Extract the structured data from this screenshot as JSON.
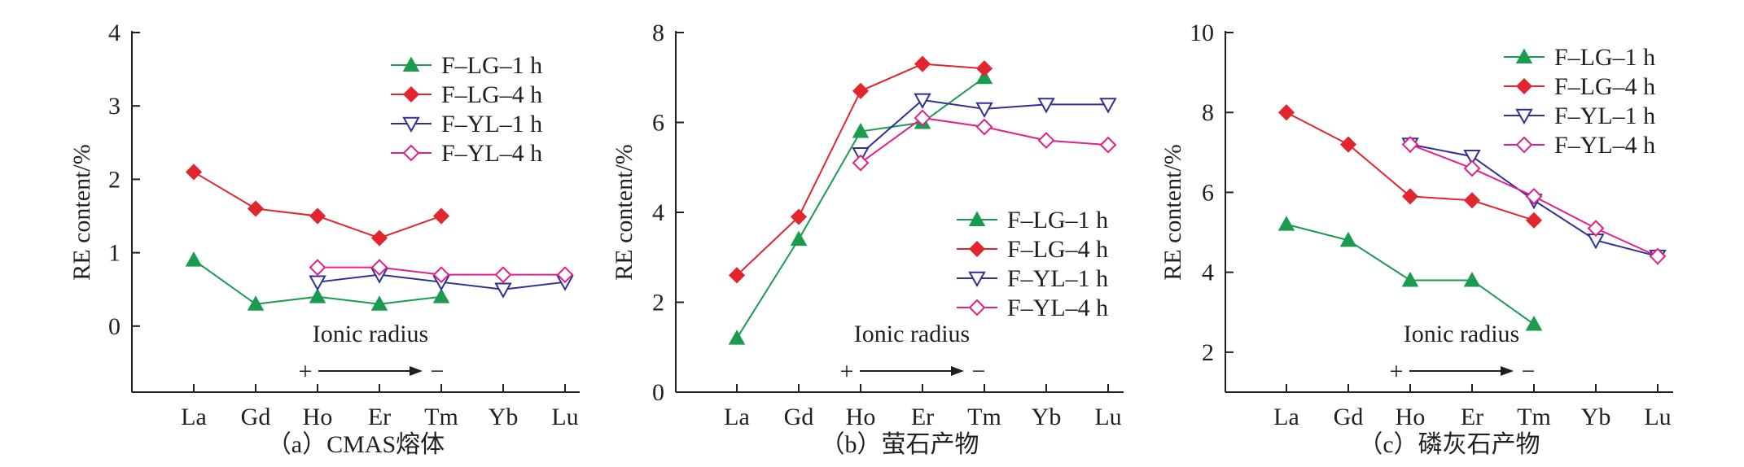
{
  "chart_data": [
    {
      "type": "line",
      "caption": "（a）CMAS熔体",
      "ylabel": "RE content/%",
      "ylim": [
        -0.9,
        4
      ],
      "yticks": [
        0,
        1,
        2,
        3,
        4
      ],
      "categories": [
        "La",
        "Gd",
        "Ho",
        "Er",
        "Tm",
        "Yb",
        "Lu"
      ],
      "annotation": {
        "text": "Ionic radius",
        "plus": "+",
        "minus": "−"
      },
      "legend_position": "top-right",
      "series": [
        {
          "name": "F–LG–1 h",
          "color": "#1a9b50",
          "marker": "triangle-up-filled",
          "values": [
            0.9,
            0.3,
            0.4,
            0.3,
            0.4,
            null,
            null
          ]
        },
        {
          "name": "F–LG–4 h",
          "color": "#e1262d",
          "marker": "diamond-filled",
          "values": [
            2.1,
            1.6,
            1.5,
            1.2,
            1.5,
            null,
            null
          ]
        },
        {
          "name": "F–YL–1 h",
          "color": "#2e3192",
          "marker": "triangle-down-open",
          "values": [
            null,
            null,
            0.6,
            0.7,
            0.6,
            0.5,
            0.6
          ]
        },
        {
          "name": "F–YL–4 h",
          "color": "#e0218a",
          "marker": "diamond-open",
          "values": [
            null,
            null,
            0.8,
            0.8,
            0.7,
            0.7,
            0.7
          ]
        }
      ]
    },
    {
      "type": "line",
      "caption": "（b）萤石产物",
      "ylabel": "RE content/%",
      "ylim": [
        0,
        8
      ],
      "yticks": [
        0,
        2,
        4,
        6,
        8
      ],
      "categories": [
        "La",
        "Gd",
        "Ho",
        "Er",
        "Tm",
        "Yb",
        "Lu"
      ],
      "annotation": {
        "text": "Ionic radius",
        "plus": "+",
        "minus": "−"
      },
      "legend_position": "center-right",
      "series": [
        {
          "name": "F–LG–1 h",
          "color": "#1a9b50",
          "marker": "triangle-up-filled",
          "values": [
            1.2,
            3.4,
            5.8,
            6.0,
            7.0,
            null,
            null
          ]
        },
        {
          "name": "F–LG–4 h",
          "color": "#e1262d",
          "marker": "diamond-filled",
          "values": [
            2.6,
            3.9,
            6.7,
            7.3,
            7.2,
            null,
            null
          ]
        },
        {
          "name": "F–YL–1 h",
          "color": "#2e3192",
          "marker": "triangle-down-open",
          "values": [
            null,
            null,
            5.3,
            6.5,
            6.3,
            6.4,
            6.4
          ]
        },
        {
          "name": "F–YL–4 h",
          "color": "#e0218a",
          "marker": "diamond-open",
          "values": [
            null,
            null,
            5.1,
            6.1,
            5.9,
            5.6,
            5.5
          ]
        }
      ]
    },
    {
      "type": "line",
      "caption": "（c）磷灰石产物",
      "ylabel": "RE content/%",
      "ylim": [
        1,
        10
      ],
      "yticks": [
        2,
        4,
        6,
        8,
        10
      ],
      "categories": [
        "La",
        "Gd",
        "Ho",
        "Er",
        "Tm",
        "Yb",
        "Lu"
      ],
      "annotation": {
        "text": "Ionic radius",
        "plus": "+",
        "minus": "−"
      },
      "legend_position": "top-right",
      "series": [
        {
          "name": "F–LG–1 h",
          "color": "#1a9b50",
          "marker": "triangle-up-filled",
          "values": [
            5.2,
            4.8,
            3.8,
            3.8,
            2.7,
            null,
            null
          ]
        },
        {
          "name": "F–LG–4 h",
          "color": "#e1262d",
          "marker": "diamond-filled",
          "values": [
            8.0,
            7.2,
            5.9,
            5.8,
            5.3,
            null,
            null
          ]
        },
        {
          "name": "F–YL–1 h",
          "color": "#2e3192",
          "marker": "triangle-down-open",
          "values": [
            null,
            null,
            7.2,
            6.9,
            5.8,
            4.8,
            4.4
          ]
        },
        {
          "name": "F–YL–4 h",
          "color": "#e0218a",
          "marker": "diamond-open",
          "values": [
            null,
            null,
            7.2,
            6.6,
            5.9,
            5.1,
            4.4
          ]
        }
      ]
    }
  ]
}
